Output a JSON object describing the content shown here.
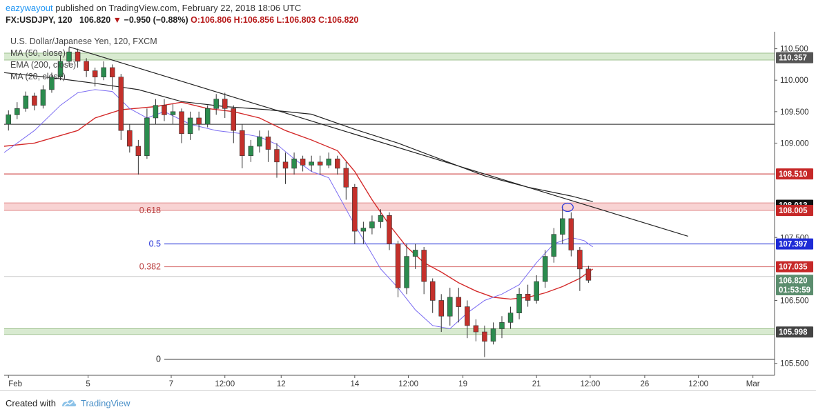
{
  "header": {
    "author": "eazywayout",
    "published_text": "published on TradingView.com, February 22, 2018 18:06 UTC",
    "symbol": "FX:USDJPY, 120",
    "last_price": "106.820",
    "change_arrow": "▼",
    "change": "−0.950 (−0.88%)",
    "ohlc": "O:106.806 H:106.856 L:106.803 C:106.820"
  },
  "legend": {
    "title": "U.S. Dollar/Japanese Yen, 120, FXCM",
    "ma50": "MA (50, close)",
    "ema200": "EMA (200, close)",
    "ma20": "MA (20, close)"
  },
  "footer": {
    "created_with": "Created with",
    "brand": "TradingView"
  },
  "chart_data": {
    "type": "candlestick",
    "x_ticks": [
      {
        "label": "Feb",
        "t": 0.0
      },
      {
        "label": "5",
        "t": 9.2
      },
      {
        "label": "7",
        "t": 18.8
      },
      {
        "label": "12:00",
        "t": 25.0
      },
      {
        "label": "12",
        "t": 31.5
      },
      {
        "label": "14",
        "t": 40.0
      },
      {
        "label": "12:00",
        "t": 46.2
      },
      {
        "label": "19",
        "t": 52.5
      },
      {
        "label": "21",
        "t": 61.0
      },
      {
        "label": "12:00",
        "t": 67.2
      },
      {
        "label": "26",
        "t": 73.5
      },
      {
        "label": "12:00",
        "t": 79.7
      },
      {
        "label": "Mar",
        "t": 86.0
      }
    ],
    "y_ticks": [
      110.5,
      110.0,
      109.5,
      109.0,
      107.5,
      106.5,
      105.5
    ],
    "y_tick_labels": [
      "110.500",
      "110.000",
      "109.500",
      "109.000",
      "107.500",
      "106.500",
      "105.500"
    ],
    "ylim": [
      105.31,
      110.77
    ],
    "xlim": [
      -0.5,
      88.5
    ],
    "price_labels": [
      {
        "value": 110.357,
        "label": "110.357",
        "bg": "#555555"
      },
      {
        "value": 108.51,
        "label": "108.510",
        "bg": "#c62828"
      },
      {
        "value": 108.013,
        "label": "108.013",
        "bg": "#111111"
      },
      {
        "value": 107.93,
        "label": "108.005",
        "bg": "#c62828"
      },
      {
        "value": 107.397,
        "label": "107.397",
        "bg": "#1e2bd6"
      },
      {
        "value": 107.035,
        "label": "107.035",
        "bg": "#c62828"
      },
      {
        "value": 106.82,
        "label": "106.820",
        "bg": "#5b8d6e"
      },
      {
        "value": 106.67,
        "label": "01:53:59",
        "bg": "#5b8d6e"
      },
      {
        "value": 105.998,
        "label": "105.998",
        "bg": "#444444"
      }
    ],
    "zones": [
      {
        "low": 110.32,
        "high": 110.43,
        "fill": "#d8ead0",
        "edge": "#9fc28f"
      },
      {
        "low": 107.93,
        "high": 108.05,
        "fill": "#f8d3d3",
        "edge": "#e08a8a"
      },
      {
        "low": 105.96,
        "high": 106.05,
        "fill": "#d8ead0",
        "edge": "#9fc28f"
      }
    ],
    "hlines": [
      {
        "value": 109.3,
        "color": "#222222",
        "x0": -0.5,
        "x1": 88.5,
        "width": 1
      },
      {
        "value": 108.51,
        "color": "#c62828",
        "x0": -0.5,
        "x1": 88.5,
        "width": 1
      },
      {
        "value": 107.397,
        "color": "#1e2bd6",
        "x0": 18.0,
        "x1": 88.5,
        "width": 1
      },
      {
        "value": 107.035,
        "color": "#d87070",
        "x0": 18.0,
        "x1": 88.5,
        "width": 1
      },
      {
        "value": 105.565,
        "color": "#222222",
        "x0": 18.0,
        "x1": 88.5,
        "width": 1
      },
      {
        "value": 106.88,
        "color": "#cccccc",
        "x0": -0.5,
        "x1": 88.5,
        "width": 1
      }
    ],
    "fib_labels": [
      {
        "label": "0.618",
        "value": 107.93,
        "color": "#b83a3a"
      },
      {
        "label": "0.5",
        "value": 107.397,
        "color": "#1e2bd6"
      },
      {
        "label": "0.382",
        "value": 107.035,
        "color": "#b83a3a"
      },
      {
        "label": "0",
        "value": 105.565,
        "color": "#222222"
      }
    ],
    "trendline": {
      "t0": 7.0,
      "v0": 110.53,
      "t1": 78.5,
      "v1": 107.52
    },
    "circle": {
      "t": 64.6,
      "v": 107.98
    },
    "ma50": [
      [
        -0.5,
        110.12
      ],
      [
        5,
        110.04
      ],
      [
        10,
        109.95
      ],
      [
        15,
        109.85
      ],
      [
        20,
        109.66
      ],
      [
        25,
        109.58
      ],
      [
        30,
        109.53
      ],
      [
        35,
        109.46
      ],
      [
        40,
        109.22
      ],
      [
        45,
        109.0
      ],
      [
        50,
        108.74
      ],
      [
        55,
        108.48
      ],
      [
        60,
        108.3
      ],
      [
        65,
        108.16
      ],
      [
        67.5,
        108.07
      ]
    ],
    "ema200": [
      [
        -0.5,
        108.95
      ],
      [
        3,
        109.0
      ],
      [
        8,
        109.2
      ],
      [
        10,
        109.4
      ],
      [
        13,
        109.53
      ],
      [
        17,
        109.58
      ],
      [
        20,
        109.65
      ],
      [
        23,
        109.55
      ],
      [
        26,
        109.5
      ],
      [
        29,
        109.4
      ],
      [
        32,
        109.2
      ],
      [
        35,
        109.05
      ],
      [
        38,
        108.88
      ],
      [
        40,
        108.55
      ],
      [
        42,
        108.1
      ],
      [
        44,
        107.7
      ],
      [
        46,
        107.35
      ],
      [
        48,
        107.1
      ],
      [
        50,
        106.95
      ],
      [
        52,
        106.78
      ],
      [
        54,
        106.65
      ],
      [
        56,
        106.55
      ],
      [
        58,
        106.52
      ],
      [
        60,
        106.55
      ],
      [
        62,
        106.62
      ],
      [
        64,
        106.72
      ],
      [
        66,
        106.85
      ],
      [
        67.5,
        107.0
      ]
    ],
    "ma20": [
      [
        -0.5,
        108.85
      ],
      [
        3,
        109.2
      ],
      [
        6,
        109.6
      ],
      [
        8,
        109.8
      ],
      [
        10,
        109.85
      ],
      [
        12,
        109.82
      ],
      [
        14,
        109.55
      ],
      [
        16,
        109.4
      ],
      [
        18,
        109.5
      ],
      [
        21,
        109.3
      ],
      [
        24,
        109.2
      ],
      [
        27,
        109.15
      ],
      [
        29,
        109.1
      ],
      [
        31,
        108.98
      ],
      [
        33,
        108.75
      ],
      [
        35,
        108.55
      ],
      [
        37,
        108.45
      ],
      [
        38,
        108.2
      ],
      [
        39,
        107.95
      ],
      [
        40,
        107.7
      ],
      [
        41.5,
        107.35
      ],
      [
        43,
        107.0
      ],
      [
        45,
        106.7
      ],
      [
        47,
        106.35
      ],
      [
        49,
        106.1
      ],
      [
        51,
        106.05
      ],
      [
        53,
        106.3
      ],
      [
        55,
        106.5
      ],
      [
        57,
        106.6
      ],
      [
        59,
        106.75
      ],
      [
        61,
        107.1
      ],
      [
        63,
        107.4
      ],
      [
        65,
        107.5
      ],
      [
        66.5,
        107.45
      ],
      [
        67.5,
        107.35
      ]
    ],
    "candles": [
      [
        0,
        109.3,
        109.45,
        109.2,
        109.52
      ],
      [
        1,
        109.45,
        109.55,
        109.38,
        109.65
      ],
      [
        2,
        109.55,
        109.75,
        109.5,
        109.82
      ],
      [
        3,
        109.75,
        109.6,
        109.52,
        109.8
      ],
      [
        4,
        109.6,
        109.85,
        109.55,
        109.92
      ],
      [
        5,
        109.85,
        110.05,
        109.8,
        110.12
      ],
      [
        6,
        110.05,
        110.3,
        110.0,
        110.4
      ],
      [
        7,
        110.3,
        110.45,
        110.25,
        110.52
      ],
      [
        8,
        110.45,
        110.3,
        110.2,
        110.5
      ],
      [
        9,
        110.3,
        110.15,
        110.05,
        110.35
      ],
      [
        10,
        110.15,
        110.05,
        109.9,
        110.2
      ],
      [
        11,
        110.05,
        110.2,
        110.0,
        110.3
      ],
      [
        12,
        110.2,
        110.05,
        109.85,
        110.25
      ],
      [
        13,
        110.05,
        109.2,
        109.05,
        110.1
      ],
      [
        14,
        109.2,
        108.95,
        108.85,
        109.3
      ],
      [
        15,
        108.95,
        108.8,
        108.5,
        109.05
      ],
      [
        16,
        108.8,
        109.4,
        108.75,
        109.55
      ],
      [
        17,
        109.4,
        109.6,
        109.3,
        109.7
      ],
      [
        18,
        109.6,
        109.45,
        109.35,
        109.7
      ],
      [
        19,
        109.45,
        109.5,
        109.3,
        109.62
      ],
      [
        20,
        109.5,
        109.15,
        109.0,
        109.55
      ],
      [
        21,
        109.15,
        109.4,
        109.05,
        109.5
      ],
      [
        22,
        109.4,
        109.3,
        109.2,
        109.5
      ],
      [
        23,
        109.3,
        109.55,
        109.25,
        109.6
      ],
      [
        24,
        109.55,
        109.7,
        109.45,
        109.78
      ],
      [
        25,
        109.7,
        109.55,
        109.4,
        109.8
      ],
      [
        26,
        109.55,
        109.2,
        109.0,
        109.6
      ],
      [
        27,
        109.2,
        108.8,
        108.6,
        109.3
      ],
      [
        28,
        108.8,
        108.95,
        108.7,
        109.05
      ],
      [
        29,
        108.95,
        109.1,
        108.85,
        109.2
      ],
      [
        30,
        109.1,
        108.9,
        108.7,
        109.2
      ],
      [
        31,
        108.9,
        108.7,
        108.45,
        109.0
      ],
      [
        32,
        108.7,
        108.6,
        108.35,
        108.85
      ],
      [
        33,
        108.6,
        108.75,
        108.5,
        108.85
      ],
      [
        34,
        108.75,
        108.65,
        108.55,
        108.8
      ],
      [
        35,
        108.65,
        108.7,
        108.55,
        108.8
      ],
      [
        36,
        108.7,
        108.65,
        108.5,
        108.8
      ],
      [
        37,
        108.65,
        108.75,
        108.6,
        108.85
      ],
      [
        38,
        108.75,
        108.6,
        108.5,
        108.8
      ],
      [
        39,
        108.6,
        108.3,
        108.1,
        108.7
      ],
      [
        40,
        108.3,
        107.6,
        107.4,
        108.35
      ],
      [
        41,
        107.6,
        107.65,
        107.4,
        107.75
      ],
      [
        42,
        107.65,
        107.75,
        107.55,
        107.85
      ],
      [
        43,
        107.75,
        107.85,
        107.65,
        107.95
      ],
      [
        44,
        107.85,
        107.4,
        107.3,
        107.9
      ],
      [
        45,
        107.4,
        106.7,
        106.55,
        107.45
      ],
      [
        46,
        106.7,
        107.2,
        106.6,
        107.4
      ],
      [
        47,
        107.2,
        107.3,
        107.0,
        107.4
      ],
      [
        48,
        107.3,
        106.8,
        106.6,
        107.35
      ],
      [
        49,
        106.8,
        106.5,
        106.3,
        106.85
      ],
      [
        50,
        106.5,
        106.25,
        106.0,
        106.6
      ],
      [
        51,
        106.25,
        106.55,
        106.1,
        106.7
      ],
      [
        52,
        106.55,
        106.4,
        106.15,
        106.7
      ],
      [
        53,
        106.4,
        106.1,
        105.9,
        106.5
      ],
      [
        54,
        106.1,
        106.0,
        105.85,
        106.2
      ],
      [
        55,
        106.0,
        105.85,
        105.6,
        106.1
      ],
      [
        56,
        105.85,
        106.05,
        105.8,
        106.15
      ],
      [
        57,
        106.05,
        106.15,
        105.9,
        106.25
      ],
      [
        58,
        106.15,
        106.3,
        106.05,
        106.4
      ],
      [
        59,
        106.3,
        106.6,
        106.2,
        106.7
      ],
      [
        60,
        106.6,
        106.5,
        106.4,
        106.75
      ],
      [
        61,
        106.5,
        106.8,
        106.45,
        106.9
      ],
      [
        62,
        106.8,
        107.2,
        106.7,
        107.3
      ],
      [
        63,
        107.2,
        107.55,
        107.1,
        107.65
      ],
      [
        64,
        107.55,
        107.8,
        107.4,
        108.0
      ],
      [
        65,
        107.8,
        107.3,
        107.2,
        107.9
      ],
      [
        66,
        107.3,
        107.0,
        106.65,
        107.35
      ],
      [
        67,
        107.0,
        106.82,
        106.78,
        107.05
      ]
    ]
  }
}
